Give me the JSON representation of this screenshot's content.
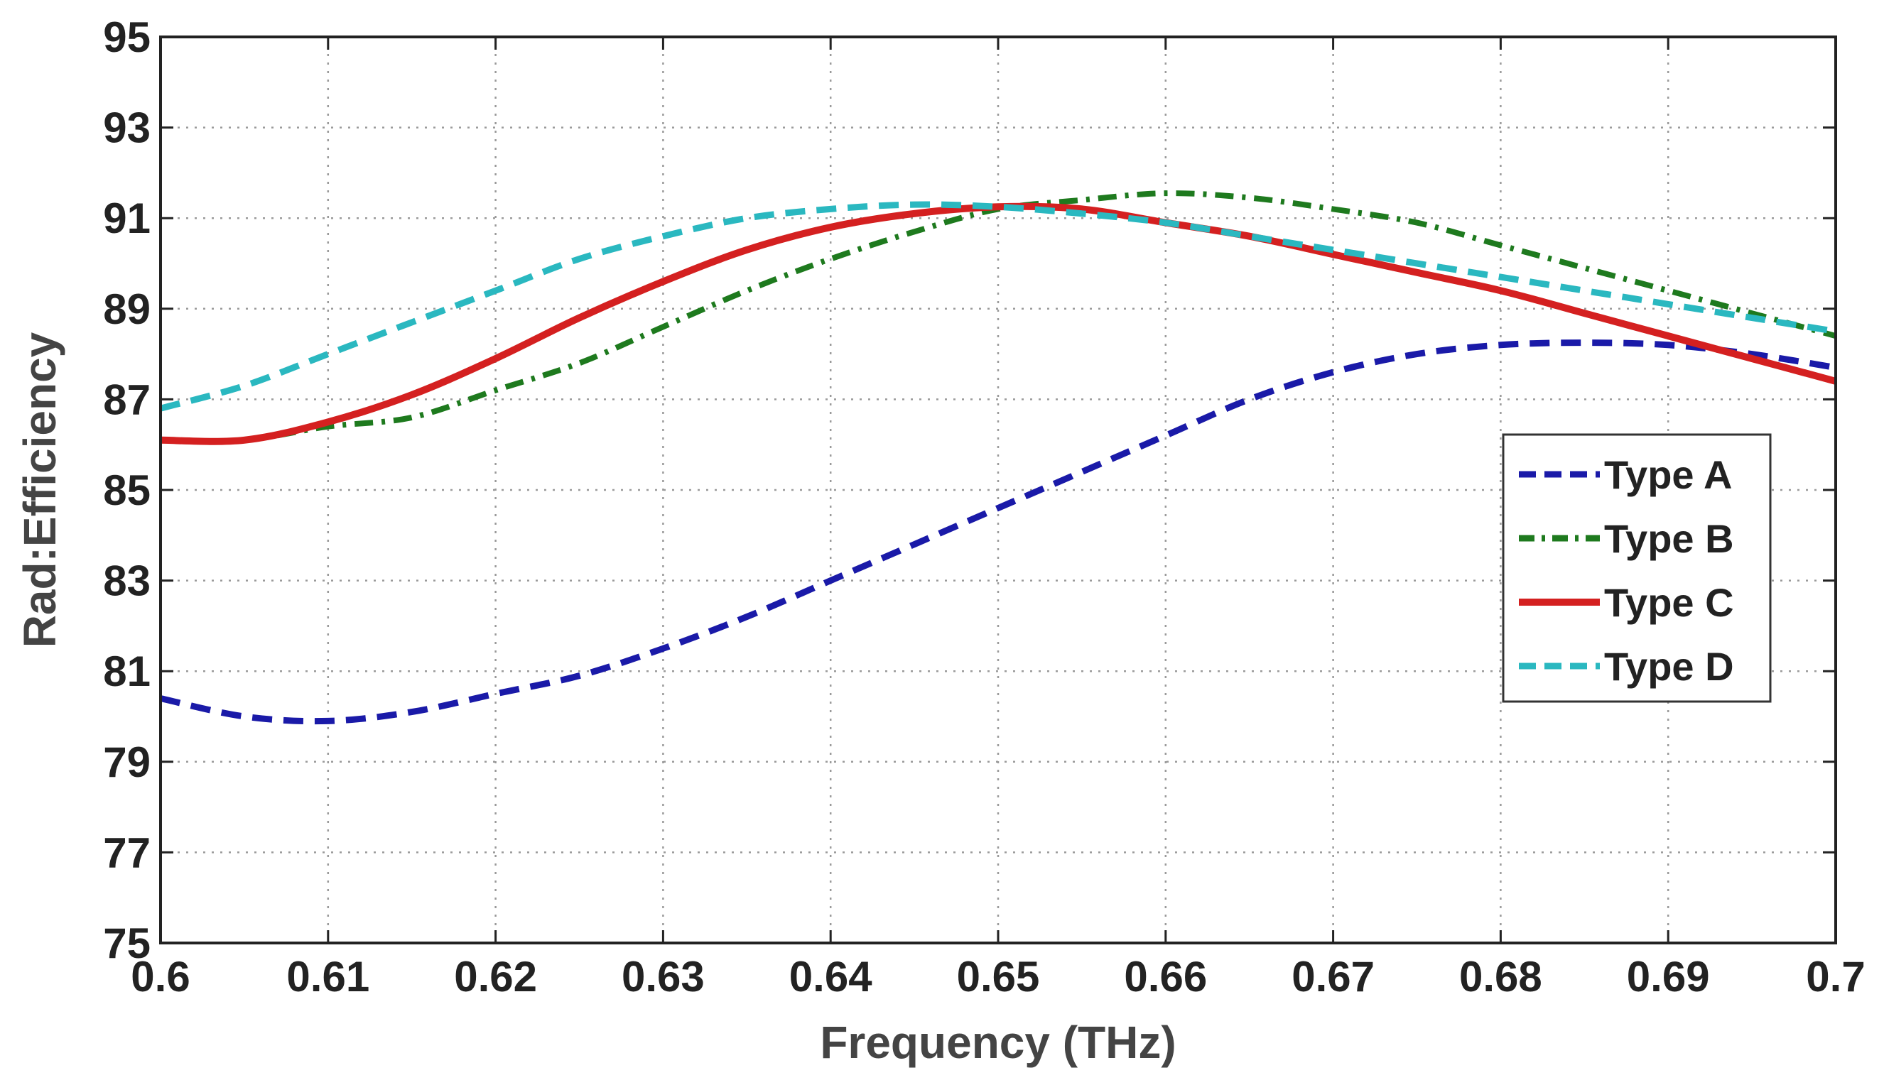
{
  "chart_data": {
    "type": "line",
    "title": "",
    "xlabel": "Frequency (THz)",
    "ylabel": "Rad:Efficiency",
    "xlim": [
      0.6,
      0.7
    ],
    "ylim": [
      75,
      95
    ],
    "grid": true,
    "legend_position": "right",
    "x_ticks": [
      0.6,
      0.61,
      0.62,
      0.63,
      0.64,
      0.65,
      0.66,
      0.67,
      0.68,
      0.69,
      0.7
    ],
    "x_tick_labels": [
      "0.6",
      "0.61",
      "0.62",
      "0.63",
      "0.64",
      "0.65",
      "0.66",
      "0.67",
      "0.68",
      "0.69",
      "0.7"
    ],
    "y_ticks": [
      75,
      77,
      79,
      81,
      83,
      85,
      87,
      89,
      91,
      93,
      95
    ],
    "y_tick_labels": [
      "75",
      "77",
      "79",
      "81",
      "83",
      "85",
      "87",
      "89",
      "91",
      "93",
      "95"
    ],
    "x": [
      0.6,
      0.605,
      0.61,
      0.615,
      0.62,
      0.625,
      0.63,
      0.635,
      0.64,
      0.645,
      0.65,
      0.655,
      0.66,
      0.665,
      0.67,
      0.675,
      0.68,
      0.685,
      0.69,
      0.695,
      0.7
    ],
    "series": [
      {
        "name": "Type A",
        "color": "#1a1aa8",
        "dash": "dash",
        "values": [
          80.4,
          80.0,
          79.9,
          80.1,
          80.5,
          80.9,
          81.5,
          82.2,
          83.0,
          83.8,
          84.6,
          85.4,
          86.2,
          87.0,
          87.6,
          88.0,
          88.2,
          88.25,
          88.2,
          88.0,
          87.7
        ]
      },
      {
        "name": "Type B",
        "color": "#1e7a1e",
        "dash": "dashdot",
        "values": [
          86.1,
          86.1,
          86.4,
          86.6,
          87.2,
          87.8,
          88.6,
          89.4,
          90.1,
          90.7,
          91.2,
          91.4,
          91.55,
          91.45,
          91.2,
          90.9,
          90.4,
          89.9,
          89.4,
          88.9,
          88.4
        ]
      },
      {
        "name": "Type C",
        "color": "#d42020",
        "dash": "solid",
        "values": [
          86.1,
          86.1,
          86.5,
          87.1,
          87.9,
          88.8,
          89.6,
          90.3,
          90.8,
          91.1,
          91.25,
          91.2,
          90.9,
          90.6,
          90.2,
          89.8,
          89.4,
          88.9,
          88.4,
          87.9,
          87.4
        ]
      },
      {
        "name": "Type D",
        "color": "#2ab8c0",
        "dash": "dash",
        "values": [
          86.8,
          87.3,
          88.0,
          88.7,
          89.4,
          90.1,
          90.6,
          91.0,
          91.2,
          91.3,
          91.25,
          91.1,
          90.9,
          90.6,
          90.3,
          90.0,
          89.7,
          89.4,
          89.1,
          88.8,
          88.5
        ]
      }
    ]
  }
}
